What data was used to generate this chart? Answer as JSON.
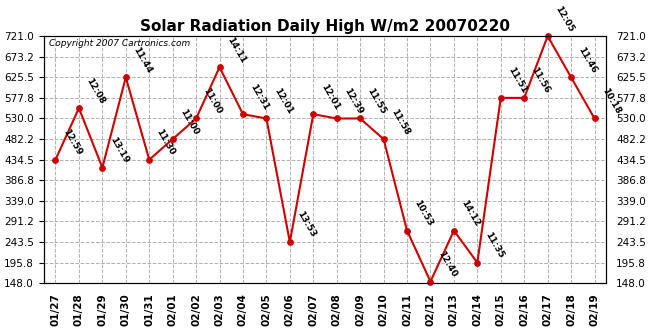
{
  "title": "Solar Radiation Daily High W/m2 20070220",
  "copyright": "Copyright 2007 Cartronics.com",
  "dates": [
    "01/27",
    "01/28",
    "01/29",
    "01/30",
    "01/31",
    "02/01",
    "02/02",
    "02/03",
    "02/04",
    "02/05",
    "02/06",
    "02/07",
    "02/08",
    "02/09",
    "02/10",
    "02/11",
    "02/12",
    "02/13",
    "02/14",
    "02/15",
    "02/16",
    "02/17",
    "02/18",
    "02/19"
  ],
  "values": [
    434.5,
    554.0,
    416.0,
    625.5,
    434.5,
    482.2,
    530.0,
    649.0,
    540.0,
    530.0,
    243.5,
    540.0,
    530.0,
    530.0,
    482.2,
    270.0,
    152.0,
    270.0,
    195.8,
    577.8,
    577.8,
    721.0,
    625.5,
    530.0
  ],
  "labels": [
    "12:59",
    "12:08",
    "13:19",
    "11:44",
    "11:30",
    "11:00",
    "11:00",
    "14:11",
    "12:31",
    "12:01",
    "13:53",
    "12:01",
    "12:39",
    "11:55",
    "11:58",
    "10:53",
    "12:40",
    "14:12",
    "11:35",
    "11:51",
    "11:56",
    "12:05",
    "11:46",
    "10:18"
  ],
  "line_color": "#cc0000",
  "marker_color": "#cc0000",
  "bg_color": "#ffffff",
  "grid_color": "#b0b0b0",
  "ylim_min": 148.0,
  "ylim_max": 721.0,
  "yticks": [
    148.0,
    195.8,
    243.5,
    291.2,
    339.0,
    386.8,
    434.5,
    482.2,
    530.0,
    577.8,
    625.5,
    673.2,
    721.0
  ],
  "title_fontsize": 11,
  "label_fontsize": 6.5,
  "tick_fontsize": 7.5,
  "copyright_fontsize": 6.5
}
